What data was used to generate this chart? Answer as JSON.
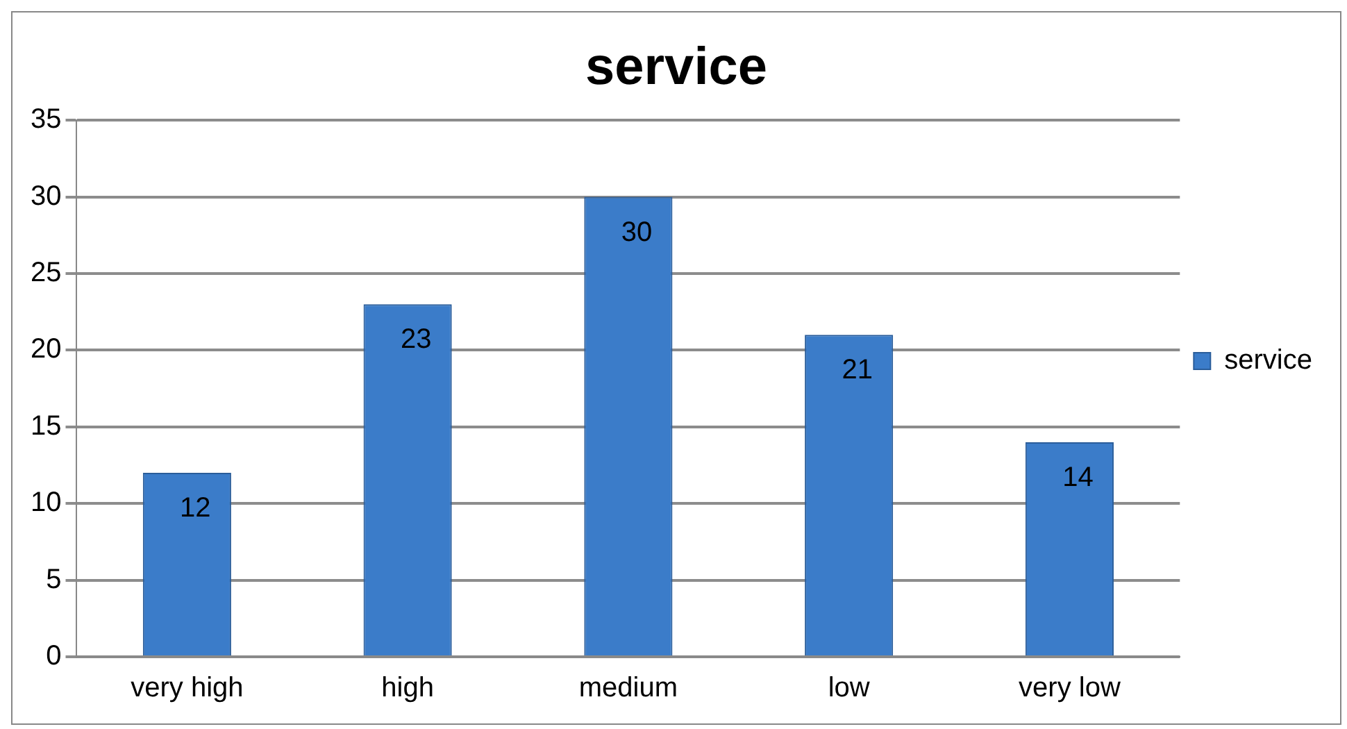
{
  "chart_data": {
    "type": "bar",
    "title": "service",
    "categories": [
      "very high",
      "high",
      "medium",
      "low",
      "very low"
    ],
    "series": [
      {
        "name": "service",
        "color": "#3b7cc9",
        "values": [
          12,
          23,
          30,
          21,
          14
        ]
      }
    ],
    "ylim": [
      0,
      35
    ],
    "yticks": [
      0,
      5,
      10,
      15,
      20,
      25,
      30,
      35
    ],
    "grid": "y",
    "legend": "right",
    "data_labels": true
  }
}
